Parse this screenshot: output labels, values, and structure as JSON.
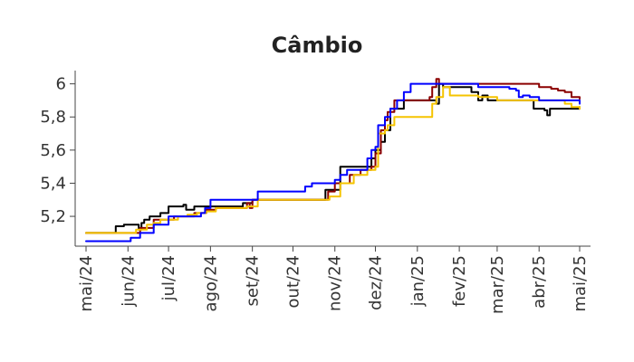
{
  "chart_data": {
    "type": "line",
    "title": "Câmbio",
    "xlabel": "",
    "ylabel": "",
    "xlim": [
      "2024-05-01",
      "2025-05-01"
    ],
    "ylim": [
      5.02,
      6.08
    ],
    "grid": false,
    "x_tick_labels": [
      "mai/24",
      "jun/24",
      "jul/24",
      "ago/24",
      "set/24",
      "out/24",
      "nov/24",
      "dez/24",
      "jan/25",
      "fev/25",
      "mar/25",
      "abr/25",
      "mai/25"
    ],
    "x_tick_dates": [
      "2024-05-01",
      "2024-06-01",
      "2024-07-01",
      "2024-08-01",
      "2024-09-01",
      "2024-10-01",
      "2024-11-01",
      "2024-12-01",
      "2025-01-01",
      "2025-02-01",
      "2025-03-01",
      "2025-04-01",
      "2025-05-01"
    ],
    "y_ticks": [
      5.2,
      5.4,
      5.6,
      5.8,
      6.0
    ],
    "y_tick_labels": [
      "5,2",
      "5,4",
      "5,6",
      "5,8",
      "6"
    ],
    "series": [
      {
        "color": "#000000",
        "points": [
          [
            "2024-05-01",
            5.1
          ],
          [
            "2024-05-22",
            5.1
          ],
          [
            "2024-05-23",
            5.14
          ],
          [
            "2024-05-29",
            5.15
          ],
          [
            "2024-06-07",
            5.15
          ],
          [
            "2024-06-09",
            5.12
          ],
          [
            "2024-06-11",
            5.16
          ],
          [
            "2024-06-13",
            5.18
          ],
          [
            "2024-06-17",
            5.2
          ],
          [
            "2024-06-25",
            5.22
          ],
          [
            "2024-07-01",
            5.26
          ],
          [
            "2024-07-12",
            5.27
          ],
          [
            "2024-07-14",
            5.24
          ],
          [
            "2024-07-20",
            5.26
          ],
          [
            "2024-07-29",
            5.26
          ],
          [
            "2024-08-05",
            5.26
          ],
          [
            "2024-08-15",
            5.26
          ],
          [
            "2024-08-25",
            5.28
          ],
          [
            "2024-09-01",
            5.3
          ],
          [
            "2024-09-10",
            5.3
          ],
          [
            "2024-10-15",
            5.3
          ],
          [
            "2024-10-25",
            5.36
          ],
          [
            "2024-11-05",
            5.5
          ],
          [
            "2024-11-20",
            5.5
          ],
          [
            "2024-11-25",
            5.5
          ],
          [
            "2024-11-28",
            5.55
          ],
          [
            "2024-12-01",
            5.6
          ],
          [
            "2024-12-05",
            5.65
          ],
          [
            "2024-12-08",
            5.72
          ],
          [
            "2024-12-12",
            5.85
          ],
          [
            "2024-12-22",
            5.9
          ],
          [
            "2024-12-25",
            5.9
          ],
          [
            "2025-01-01",
            5.9
          ],
          [
            "2025-01-10",
            5.9
          ],
          [
            "2025-01-15",
            5.88
          ],
          [
            "2025-01-17",
            6.0
          ],
          [
            "2025-01-20",
            5.98
          ],
          [
            "2025-02-05",
            5.98
          ],
          [
            "2025-02-10",
            5.95
          ],
          [
            "2025-02-15",
            5.9
          ],
          [
            "2025-02-18",
            5.93
          ],
          [
            "2025-02-22",
            5.9
          ],
          [
            "2025-03-05",
            5.9
          ],
          [
            "2025-03-10",
            5.9
          ],
          [
            "2025-03-20",
            5.9
          ],
          [
            "2025-03-28",
            5.85
          ],
          [
            "2025-04-05",
            5.84
          ],
          [
            "2025-04-07",
            5.81
          ],
          [
            "2025-04-09",
            5.85
          ],
          [
            "2025-04-20",
            5.85
          ],
          [
            "2025-05-01",
            5.86
          ]
        ]
      },
      {
        "color": "#8b0000",
        "points": [
          [
            "2024-05-01",
            5.1
          ],
          [
            "2024-06-01",
            5.1
          ],
          [
            "2024-06-10",
            5.13
          ],
          [
            "2024-06-20",
            5.18
          ],
          [
            "2024-07-05",
            5.2
          ],
          [
            "2024-07-15",
            5.2
          ],
          [
            "2024-07-20",
            5.22
          ],
          [
            "2024-07-29",
            5.24
          ],
          [
            "2024-08-05",
            5.25
          ],
          [
            "2024-08-25",
            5.25
          ],
          [
            "2024-08-28",
            5.28
          ],
          [
            "2024-08-30",
            5.25
          ],
          [
            "2024-09-01",
            5.3
          ],
          [
            "2024-09-10",
            5.3
          ],
          [
            "2024-10-25",
            5.3
          ],
          [
            "2024-10-27",
            5.35
          ],
          [
            "2024-11-01",
            5.4
          ],
          [
            "2024-11-10",
            5.4
          ],
          [
            "2024-11-12",
            5.45
          ],
          [
            "2024-11-20",
            5.48
          ],
          [
            "2024-11-28",
            5.5
          ],
          [
            "2024-12-01",
            5.58
          ],
          [
            "2024-12-05",
            5.72
          ],
          [
            "2024-12-08",
            5.78
          ],
          [
            "2024-12-10",
            5.83
          ],
          [
            "2024-12-15",
            5.9
          ],
          [
            "2024-12-25",
            5.9
          ],
          [
            "2025-01-05",
            5.9
          ],
          [
            "2025-01-10",
            5.92
          ],
          [
            "2025-01-12",
            5.98
          ],
          [
            "2025-01-15",
            6.03
          ],
          [
            "2025-01-17",
            6.0
          ],
          [
            "2025-02-05",
            6.0
          ],
          [
            "2025-02-10",
            6.0
          ],
          [
            "2025-03-01",
            6.0
          ],
          [
            "2025-03-15",
            6.0
          ],
          [
            "2025-04-01",
            5.98
          ],
          [
            "2025-04-10",
            5.97
          ],
          [
            "2025-04-15",
            5.96
          ],
          [
            "2025-04-20",
            5.95
          ],
          [
            "2025-04-25",
            5.92
          ],
          [
            "2025-05-01",
            5.91
          ]
        ]
      },
      {
        "color": "#f5c400",
        "points": [
          [
            "2024-05-01",
            5.1
          ],
          [
            "2024-06-01",
            5.1
          ],
          [
            "2024-06-07",
            5.12
          ],
          [
            "2024-06-15",
            5.15
          ],
          [
            "2024-06-20",
            5.16
          ],
          [
            "2024-06-25",
            5.18
          ],
          [
            "2024-07-01",
            5.18
          ],
          [
            "2024-07-08",
            5.2
          ],
          [
            "2024-07-15",
            5.21
          ],
          [
            "2024-07-22",
            5.22
          ],
          [
            "2024-07-29",
            5.23
          ],
          [
            "2024-08-05",
            5.25
          ],
          [
            "2024-08-15",
            5.25
          ],
          [
            "2024-08-28",
            5.26
          ],
          [
            "2024-09-05",
            5.3
          ],
          [
            "2024-09-15",
            5.3
          ],
          [
            "2024-10-25",
            5.3
          ],
          [
            "2024-10-28",
            5.32
          ],
          [
            "2024-11-05",
            5.4
          ],
          [
            "2024-11-15",
            5.45
          ],
          [
            "2024-11-25",
            5.48
          ],
          [
            "2024-12-01",
            5.5
          ],
          [
            "2024-12-03",
            5.7
          ],
          [
            "2024-12-08",
            5.72
          ],
          [
            "2024-12-10",
            5.75
          ],
          [
            "2024-12-15",
            5.8
          ],
          [
            "2024-12-20",
            5.8
          ],
          [
            "2025-01-01",
            5.8
          ],
          [
            "2025-01-08",
            5.8
          ],
          [
            "2025-01-12",
            5.88
          ],
          [
            "2025-01-15",
            5.92
          ],
          [
            "2025-01-20",
            5.98
          ],
          [
            "2025-01-25",
            5.93
          ],
          [
            "2025-02-01",
            5.93
          ],
          [
            "2025-02-15",
            5.92
          ],
          [
            "2025-03-01",
            5.9
          ],
          [
            "2025-03-15",
            5.9
          ],
          [
            "2025-04-01",
            5.9
          ],
          [
            "2025-04-10",
            5.9
          ],
          [
            "2025-04-20",
            5.88
          ],
          [
            "2025-04-25",
            5.86
          ],
          [
            "2025-05-01",
            5.85
          ]
        ]
      },
      {
        "color": "#0000ff",
        "points": [
          [
            "2024-05-01",
            5.05
          ],
          [
            "2024-06-01",
            5.05
          ],
          [
            "2024-06-03",
            5.07
          ],
          [
            "2024-06-10",
            5.1
          ],
          [
            "2024-06-17",
            5.1
          ],
          [
            "2024-06-20",
            5.15
          ],
          [
            "2024-07-01",
            5.2
          ],
          [
            "2024-07-15",
            5.2
          ],
          [
            "2024-07-22",
            5.2
          ],
          [
            "2024-07-25",
            5.22
          ],
          [
            "2024-07-28",
            5.25
          ],
          [
            "2024-08-01",
            5.3
          ],
          [
            "2024-08-15",
            5.3
          ],
          [
            "2024-09-01",
            5.3
          ],
          [
            "2024-09-05",
            5.35
          ],
          [
            "2024-09-20",
            5.35
          ],
          [
            "2024-10-01",
            5.35
          ],
          [
            "2024-10-10",
            5.38
          ],
          [
            "2024-10-15",
            5.4
          ],
          [
            "2024-10-25",
            5.4
          ],
          [
            "2024-11-01",
            5.42
          ],
          [
            "2024-11-05",
            5.45
          ],
          [
            "2024-11-10",
            5.48
          ],
          [
            "2024-11-25",
            5.55
          ],
          [
            "2024-11-28",
            5.6
          ],
          [
            "2024-12-01",
            5.62
          ],
          [
            "2024-12-03",
            5.75
          ],
          [
            "2024-12-08",
            5.8
          ],
          [
            "2024-12-12",
            5.85
          ],
          [
            "2024-12-17",
            5.9
          ],
          [
            "2024-12-22",
            5.95
          ],
          [
            "2024-12-27",
            6.0
          ],
          [
            "2025-01-05",
            6.0
          ],
          [
            "2025-01-15",
            6.0
          ],
          [
            "2025-02-01",
            6.0
          ],
          [
            "2025-02-10",
            6.0
          ],
          [
            "2025-02-15",
            5.98
          ],
          [
            "2025-03-01",
            5.98
          ],
          [
            "2025-03-10",
            5.97
          ],
          [
            "2025-03-15",
            5.96
          ],
          [
            "2025-03-17",
            5.92
          ],
          [
            "2025-03-20",
            5.93
          ],
          [
            "2025-03-25",
            5.92
          ],
          [
            "2025-04-01",
            5.9
          ],
          [
            "2025-04-15",
            5.9
          ],
          [
            "2025-04-25",
            5.9
          ],
          [
            "2025-05-01",
            5.88
          ]
        ]
      }
    ]
  }
}
